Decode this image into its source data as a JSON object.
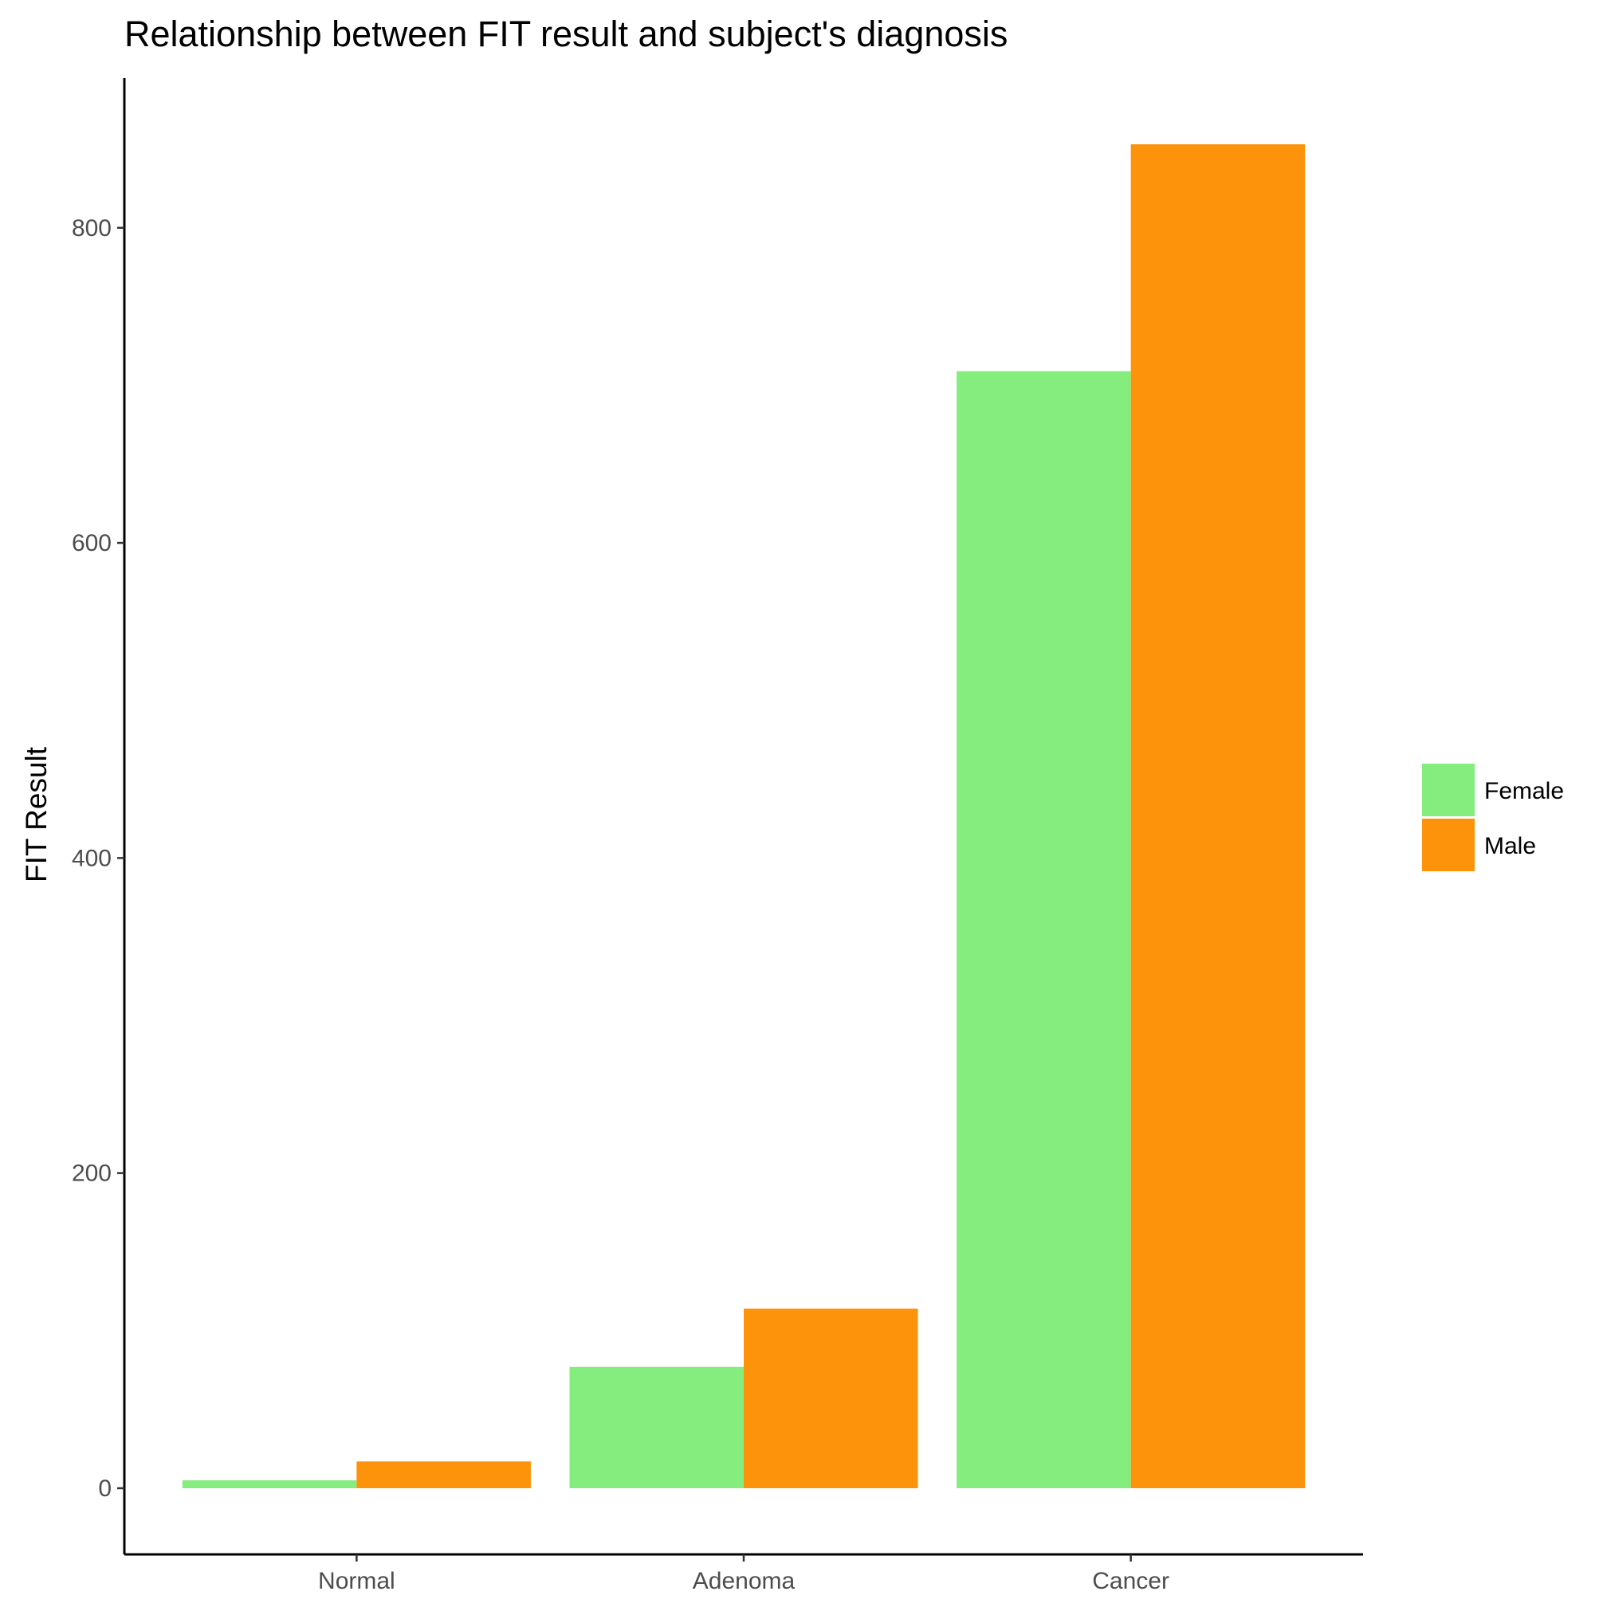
{
  "chart_data": {
    "type": "bar",
    "title": "Relationship between FIT result and subject's diagnosis",
    "xlabel": "",
    "ylabel": "FIT Result",
    "categories": [
      "Normal",
      "Adenoma",
      "Cancer"
    ],
    "series": [
      {
        "name": "Female",
        "color": "#84ED7E",
        "values": [
          5,
          77,
          709
        ]
      },
      {
        "name": "Male",
        "color": "#FD930B",
        "values": [
          17,
          114,
          853
        ]
      }
    ],
    "yticks": [
      0,
      200,
      400,
      600,
      800
    ],
    "ylim": [
      -42,
      895
    ],
    "grid": false,
    "legend_position": "right"
  }
}
